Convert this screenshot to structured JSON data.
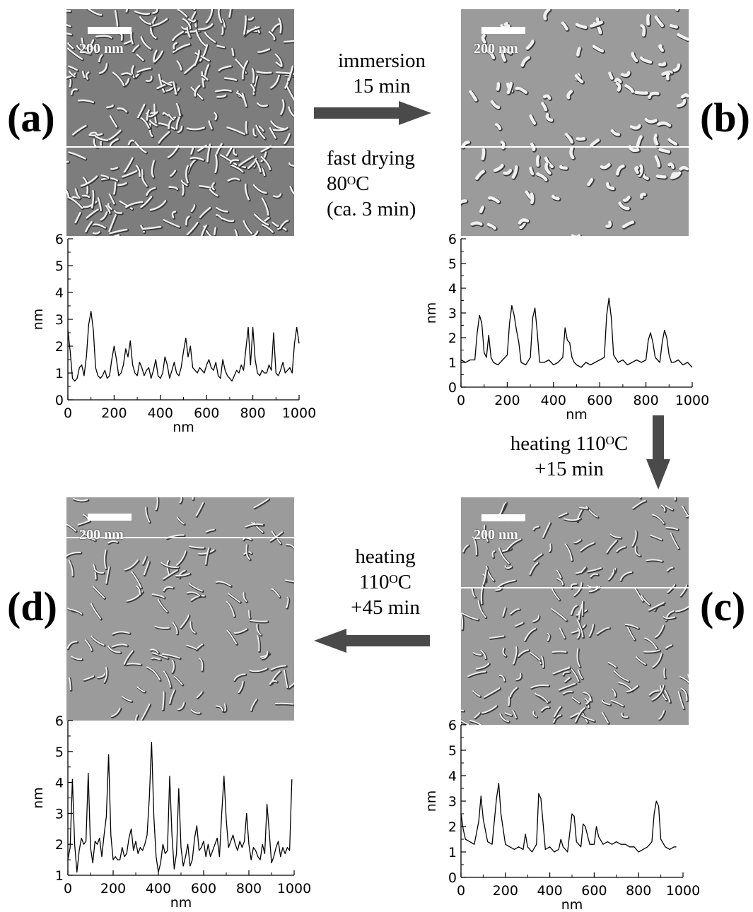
{
  "panels": [
    {
      "id": "a",
      "label": "(a)",
      "scalebar": "200 nm"
    },
    {
      "id": "b",
      "label": "(b)",
      "scalebar": "200 nm"
    },
    {
      "id": "c",
      "label": "(c)",
      "scalebar": "200 nm"
    },
    {
      "id": "d",
      "label": "(d)",
      "scalebar": "200 nm"
    }
  ],
  "steps": {
    "a_to_b_top": [
      "immersion",
      "15 min"
    ],
    "a_to_b_bottom": [
      "fast drying",
      "80ᴼC",
      "(ca. 3 min)"
    ],
    "b_to_c": [
      "heating 110ᴼC",
      "+15 min"
    ],
    "c_to_d": [
      "heating",
      "110ᴼC",
      "+45 min"
    ]
  },
  "colors": {
    "arrow": "#4a4a4a",
    "afm_bg": "#9a9a9a",
    "line": "#000000"
  },
  "chart_data": [
    {
      "panel": "a",
      "type": "line",
      "xlabel": "nm",
      "ylabel": "nm",
      "xlim": [
        0,
        1000
      ],
      "ylim": [
        0,
        6
      ],
      "xticks": [
        0,
        200,
        400,
        600,
        800,
        1000
      ],
      "yticks": [
        0,
        1,
        2,
        3,
        4,
        5,
        6
      ],
      "x": [
        0,
        10,
        20,
        30,
        40,
        50,
        60,
        70,
        80,
        90,
        100,
        110,
        120,
        130,
        140,
        150,
        160,
        170,
        180,
        190,
        200,
        210,
        220,
        230,
        240,
        250,
        260,
        270,
        280,
        290,
        300,
        310,
        320,
        330,
        340,
        350,
        360,
        370,
        380,
        390,
        400,
        410,
        420,
        430,
        440,
        450,
        460,
        470,
        480,
        490,
        500,
        510,
        520,
        530,
        540,
        550,
        560,
        570,
        580,
        590,
        600,
        610,
        620,
        630,
        640,
        650,
        660,
        670,
        680,
        690,
        700,
        710,
        720,
        730,
        740,
        750,
        760,
        770,
        780,
        790,
        800,
        810,
        820,
        830,
        840,
        850,
        860,
        870,
        880,
        890,
        900,
        910,
        920,
        930,
        940,
        950,
        960,
        970,
        980,
        990,
        1000
      ],
      "y": [
        2.6,
        1.8,
        0.8,
        0.7,
        0.8,
        1.2,
        1.3,
        0.9,
        1.6,
        2.8,
        3.3,
        2.6,
        1.2,
        0.9,
        0.8,
        0.9,
        1.1,
        0.8,
        0.9,
        1.5,
        2.0,
        1.5,
        0.9,
        1.0,
        1.3,
        1.9,
        1.6,
        2.2,
        1.3,
        1.0,
        0.9,
        1.4,
        1.2,
        0.9,
        1.1,
        1.2,
        0.8,
        1.1,
        1.5,
        0.9,
        0.8,
        1.0,
        1.6,
        1.3,
        0.8,
        1.1,
        1.4,
        1.0,
        0.9,
        1.2,
        1.8,
        2.3,
        1.6,
        2.0,
        1.2,
        1.1,
        1.0,
        1.2,
        1.1,
        1.0,
        1.3,
        1.5,
        1.2,
        1.1,
        1.4,
        0.9,
        0.8,
        1.5,
        1.1,
        0.9,
        0.8,
        0.7,
        0.9,
        1.1,
        1.0,
        1.3,
        1.1,
        1.9,
        2.7,
        1.3,
        2.7,
        1.5,
        1.0,
        0.9,
        1.1,
        1.0,
        1.0,
        1.3,
        1.1,
        2.5,
        1.0,
        0.9,
        1.1,
        1.4,
        1.0,
        1.1,
        1.2,
        1.0,
        2.1,
        2.7,
        2.1
      ]
    },
    {
      "panel": "b",
      "type": "line",
      "xlabel": "nm",
      "ylabel": "nm",
      "xlim": [
        0,
        1000
      ],
      "ylim": [
        0,
        6
      ],
      "xticks": [
        0,
        200,
        400,
        600,
        800,
        1000
      ],
      "yticks": [
        0,
        1,
        2,
        3,
        4,
        5,
        6
      ],
      "x": [
        0,
        20,
        40,
        60,
        70,
        80,
        90,
        100,
        110,
        120,
        130,
        140,
        160,
        180,
        200,
        210,
        220,
        230,
        240,
        250,
        260,
        280,
        300,
        310,
        320,
        330,
        340,
        360,
        380,
        400,
        420,
        440,
        450,
        460,
        470,
        480,
        490,
        500,
        520,
        540,
        560,
        580,
        600,
        620,
        630,
        640,
        650,
        660,
        680,
        700,
        720,
        740,
        760,
        780,
        800,
        810,
        820,
        830,
        840,
        860,
        870,
        880,
        890,
        900,
        910,
        920,
        940,
        960,
        980,
        1000
      ],
      "y": [
        1.1,
        1.0,
        1.1,
        1.1,
        2.2,
        2.9,
        2.6,
        1.4,
        1.2,
        2.1,
        1.2,
        1.0,
        0.9,
        1.1,
        1.3,
        2.6,
        3.3,
        2.9,
        2.3,
        1.8,
        1.0,
        0.9,
        1.2,
        2.8,
        3.2,
        2.2,
        1.0,
        1.0,
        1.1,
        0.9,
        1.0,
        1.2,
        2.4,
        1.9,
        1.8,
        1.2,
        1.0,
        0.9,
        0.8,
        1.0,
        0.9,
        1.0,
        1.1,
        1.2,
        2.9,
        3.6,
        2.8,
        1.3,
        1.0,
        1.1,
        0.9,
        1.0,
        1.1,
        1.0,
        1.1,
        1.9,
        2.2,
        1.8,
        1.2,
        1.0,
        1.8,
        2.3,
        2.0,
        1.3,
        1.0,
        1.0,
        1.1,
        0.9,
        1.0,
        0.8
      ]
    },
    {
      "panel": "c",
      "type": "line",
      "xlabel": "nm",
      "ylabel": "nm",
      "xlim": [
        0,
        1000
      ],
      "ylim": [
        0,
        6
      ],
      "xticks": [
        0,
        200,
        400,
        600,
        800,
        1000
      ],
      "yticks": [
        0,
        1,
        2,
        3,
        4,
        5,
        6
      ],
      "x": [
        0,
        10,
        20,
        40,
        60,
        80,
        90,
        100,
        120,
        140,
        160,
        170,
        180,
        200,
        220,
        240,
        260,
        280,
        290,
        300,
        320,
        340,
        350,
        360,
        370,
        380,
        400,
        420,
        440,
        450,
        460,
        480,
        500,
        510,
        520,
        540,
        550,
        560,
        580,
        600,
        610,
        620,
        640,
        660,
        680,
        700,
        720,
        740,
        760,
        780,
        800,
        820,
        840,
        860,
        870,
        880,
        890,
        900,
        920,
        940,
        960,
        970
      ],
      "y": [
        2.5,
        1.9,
        1.5,
        1.4,
        1.3,
        2.2,
        3.2,
        2.3,
        1.4,
        1.3,
        3.1,
        3.7,
        2.5,
        1.3,
        1.2,
        1.1,
        1.2,
        1.1,
        1.7,
        1.2,
        1.0,
        1.3,
        3.3,
        3.1,
        2.1,
        1.1,
        1.2,
        1.0,
        1.1,
        1.5,
        1.2,
        1.0,
        2.5,
        2.4,
        1.4,
        1.2,
        2.1,
        2.0,
        1.3,
        1.3,
        2.0,
        1.6,
        1.3,
        1.4,
        1.3,
        1.4,
        1.3,
        1.3,
        1.2,
        1.2,
        1.0,
        1.1,
        1.2,
        1.4,
        2.5,
        3.0,
        2.8,
        1.5,
        1.2,
        1.1,
        1.2,
        1.2
      ]
    },
    {
      "panel": "d",
      "type": "line",
      "xlabel": "nm",
      "ylabel": "nm",
      "xlim": [
        0,
        1000
      ],
      "ylim": [
        1,
        6
      ],
      "xticks": [
        0,
        200,
        400,
        600,
        800,
        1000
      ],
      "yticks": [
        1,
        2,
        3,
        4,
        5,
        6
      ],
      "x": [
        0,
        10,
        20,
        30,
        40,
        50,
        60,
        70,
        80,
        90,
        100,
        110,
        120,
        130,
        140,
        150,
        160,
        170,
        180,
        190,
        200,
        210,
        220,
        230,
        240,
        250,
        260,
        270,
        280,
        290,
        300,
        310,
        320,
        330,
        340,
        350,
        360,
        370,
        380,
        390,
        400,
        410,
        420,
        430,
        440,
        450,
        460,
        470,
        480,
        490,
        500,
        510,
        520,
        530,
        540,
        550,
        560,
        570,
        580,
        590,
        600,
        610,
        620,
        630,
        640,
        650,
        660,
        670,
        680,
        690,
        700,
        710,
        720,
        730,
        740,
        750,
        760,
        770,
        780,
        790,
        800,
        810,
        820,
        830,
        840,
        850,
        860,
        870,
        880,
        890,
        900,
        910,
        920,
        930,
        940,
        950,
        960,
        970,
        980,
        990
      ],
      "y": [
        1.5,
        1.9,
        4.1,
        2.0,
        1.1,
        1.8,
        2.2,
        2.0,
        2.1,
        4.3,
        1.9,
        1.4,
        2.1,
        2.0,
        2.2,
        1.6,
        2.3,
        2.9,
        4.9,
        2.3,
        1.5,
        1.6,
        1.5,
        1.5,
        1.9,
        1.6,
        1.7,
        2.2,
        2.5,
        1.8,
        2.1,
        1.7,
        1.9,
        1.8,
        2.0,
        2.3,
        3.5,
        5.3,
        2.9,
        1.6,
        1.1,
        1.4,
        2.0,
        1.7,
        1.8,
        4.2,
        2.3,
        1.2,
        1.7,
        3.8,
        1.9,
        1.3,
        1.6,
        2.0,
        1.3,
        1.5,
        2.2,
        2.6,
        1.8,
        1.9,
        2.1,
        1.6,
        2.0,
        1.6,
        1.8,
        2.0,
        2.2,
        1.6,
        3.0,
        4.2,
        2.8,
        1.9,
        2.1,
        2.3,
        2.0,
        1.8,
        2.1,
        1.9,
        2.1,
        3.0,
        2.0,
        1.5,
        1.9,
        1.8,
        1.6,
        1.5,
        2.0,
        1.7,
        3.3,
        2.4,
        1.4,
        1.6,
        1.9,
        2.1,
        1.6,
        1.9,
        1.7,
        1.9,
        1.8,
        4.1
      ]
    }
  ]
}
